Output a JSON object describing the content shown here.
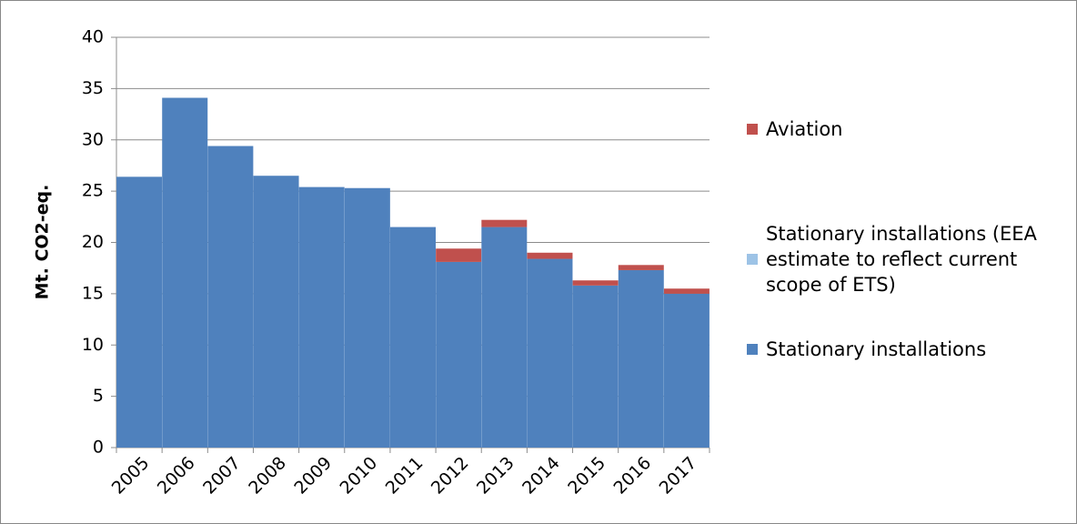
{
  "chart_data": {
    "type": "stacked_bar",
    "ylabel": "Mt. CO2-eq.",
    "categories": [
      "2005",
      "2006",
      "2007",
      "2008",
      "2009",
      "2010",
      "2011",
      "2012",
      "2013",
      "2014",
      "2015",
      "2016",
      "2017"
    ],
    "series": [
      {
        "name": "Stationary installations",
        "color": "#4f81bd",
        "values": [
          26.4,
          34.1,
          29.4,
          26.5,
          25.4,
          25.3,
          21.5,
          18.1,
          21.5,
          18.4,
          15.8,
          17.3,
          15.0
        ]
      },
      {
        "name": "Stationary installations (EEA estimate to reflect current scope of ETS)",
        "color": "#9dc3e6",
        "values": [
          0,
          0,
          0,
          0,
          0,
          0,
          0,
          0,
          0,
          0,
          0,
          0,
          0
        ]
      },
      {
        "name": "Aviation",
        "color": "#c0504d",
        "values": [
          0,
          0,
          0,
          0,
          0,
          0,
          0,
          1.3,
          0.7,
          0.6,
          0.5,
          0.5,
          0.5
        ]
      }
    ],
    "ylim": [
      0,
      40
    ],
    "yticks": [
      0,
      5,
      10,
      15,
      20,
      25,
      30,
      35,
      40
    ],
    "grid": true,
    "legend": "right"
  }
}
